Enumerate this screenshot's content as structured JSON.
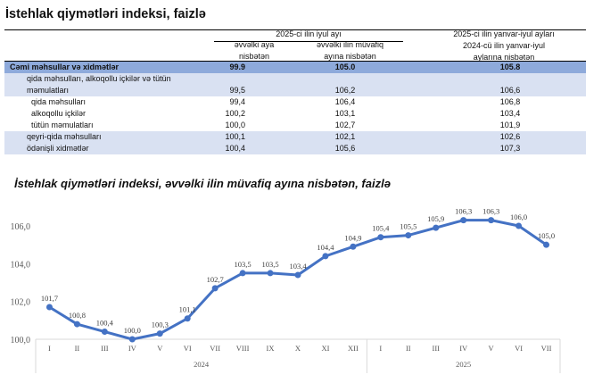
{
  "table": {
    "title": "İstehlak qiymətləri indeksi, faizlə",
    "group_header": "2025-ci ilin iyul ayı",
    "col1_header": [
      "əvvəlki aya",
      "nisbətən"
    ],
    "col2_header": [
      "əvvəlki ilin müvafiq",
      "ayına nisbətən"
    ],
    "col3_header": [
      "2025-ci ilin yanvar-iyul ayları",
      "2024-cü ilin yanvar-iyul",
      "aylarına nisbətən"
    ],
    "rows": [
      {
        "label": "Cəmi məhsullar və xidmətlər",
        "v1": "99.9",
        "v2": "105.0",
        "v3": "105.8"
      },
      {
        "label": "qida məhsulları, alkoqollu içkilər və tütün",
        "label2": "məmulatları",
        "v1": "99,5",
        "v2": "106,2",
        "v3": "106,6"
      },
      {
        "label": "qida məhsulları",
        "v1": "99,4",
        "v2": "106,4",
        "v3": "106,8"
      },
      {
        "label": "alkoqollu içkilər",
        "v1": "100,2",
        "v2": "103,1",
        "v3": "103,4"
      },
      {
        "label": "tütün məmulatları",
        "v1": "100,0",
        "v2": "102,7",
        "v3": "101,9"
      },
      {
        "label": "qeyri-qida məhsulları",
        "v1": "100,1",
        "v2": "102,1",
        "v3": "102,6"
      },
      {
        "label": "ödənişli xidmətlər",
        "v1": "100,4",
        "v2": "105,6",
        "v3": "107,3"
      }
    ],
    "colors": {
      "total_row": "#8eaadb",
      "shaded_row": "#d9e1f2"
    }
  },
  "chart_data": {
    "type": "line",
    "title": "İstehlak qiymətləri indeksi, əvvəlki ilin müvafiq ayına nisbətən, faizlə",
    "categories": [
      "I",
      "II",
      "III",
      "IV",
      "V",
      "VI",
      "VII",
      "VIII",
      "IX",
      "X",
      "XI",
      "XII",
      "I",
      "II",
      "III",
      "IV",
      "V",
      "VI",
      "VII"
    ],
    "groups": [
      {
        "label": "2024",
        "count": 12
      },
      {
        "label": "2025",
        "count": 7
      }
    ],
    "values": [
      101.7,
      100.8,
      100.4,
      100.0,
      100.3,
      101.1,
      102.7,
      103.5,
      103.5,
      103.4,
      104.4,
      104.9,
      105.4,
      105.5,
      105.9,
      106.3,
      106.3,
      106.0,
      105.0
    ],
    "value_labels": [
      "101,7",
      "100,8",
      "100,4",
      "100,0",
      "100,3",
      "101,1",
      "102,7",
      "103,5",
      "103,5",
      "103,4",
      "104,4",
      "104,9",
      "105,4",
      "105,5",
      "105,9",
      "106,3",
      "106,3",
      "106,0",
      "105,0"
    ],
    "yticks": [
      "100,0",
      "102,0",
      "104,0",
      "106,0"
    ],
    "ytick_values": [
      100,
      102,
      104,
      106
    ],
    "ylim": [
      100,
      106
    ],
    "grid": false,
    "color": "#4472c4"
  }
}
